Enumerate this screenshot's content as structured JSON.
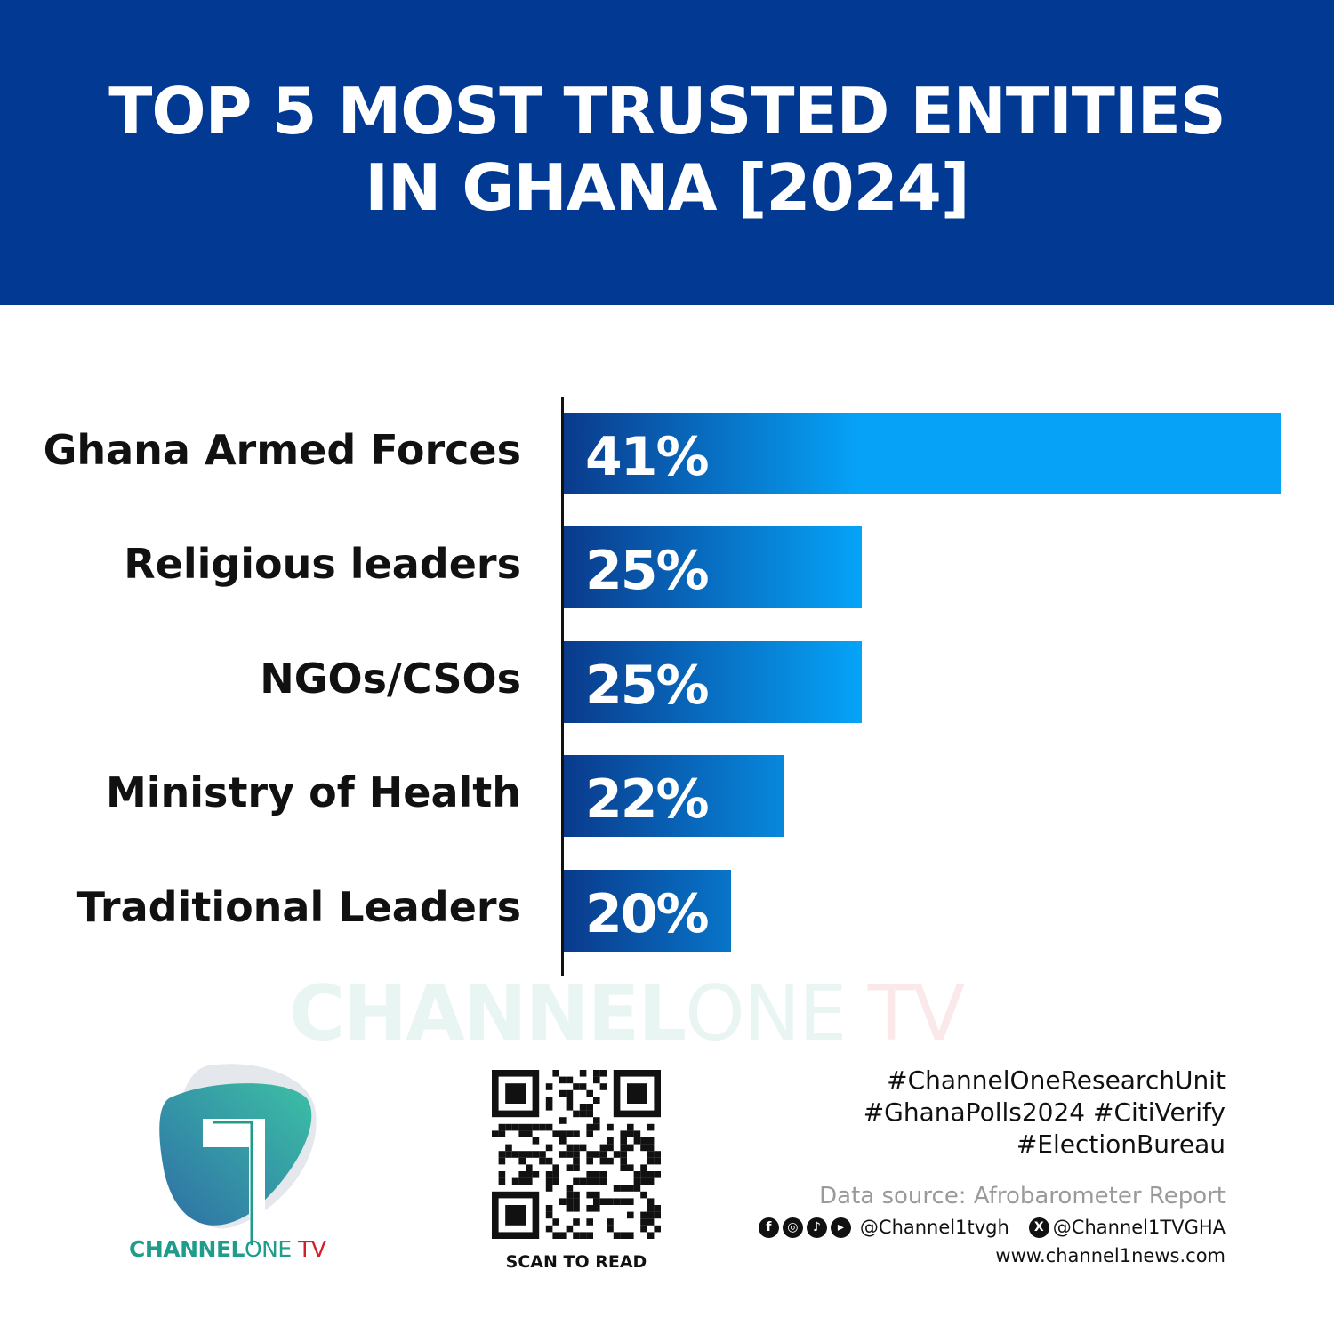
{
  "header": {
    "title_line1": "TOP 5 MOST TRUSTED ENTITIES",
    "title_line2": "IN GHANA [2024]"
  },
  "chart_data": {
    "type": "bar",
    "orientation": "horizontal",
    "title": "TOP 5 MOST TRUSTED ENTITIES IN GHANA [2024]",
    "categories": [
      "Ghana Armed Forces",
      "Religious leaders",
      "NGOs/CSOs",
      "Ministry of Health",
      "Traditional Leaders"
    ],
    "values": [
      41,
      25,
      25,
      22,
      20
    ],
    "value_labels": [
      "41%",
      "25%",
      "25%",
      "22%",
      "20%"
    ],
    "unit": "%",
    "grid": false,
    "bar_color_start": "#0a3a8c",
    "bar_color_end": "#06a2f7"
  },
  "watermark": {
    "part1": "CHANNEL",
    "part2": "ONE",
    "part3": " TV"
  },
  "logo": {
    "part1": "CHANNEL",
    "part2": "ONE",
    "part3": " TV"
  },
  "qr": {
    "caption": "SCAN TO READ"
  },
  "footer": {
    "hashtags": [
      "#ChannelOneResearchUnit",
      "#GhanaPolls2024 #CitiVerify",
      "#ElectionBureau"
    ],
    "source": "Data source: Afrobarometer Report",
    "social_handle": "@Channel1tvgh",
    "x_handle": "@Channel1TVGHA",
    "website": "www.channel1news.com",
    "social_icons": [
      "facebook-icon",
      "instagram-icon",
      "tiktok-icon",
      "youtube-icon",
      "x-icon"
    ]
  },
  "colors": {
    "header_bg": "#023a93",
    "brand_teal": "#1e9c8c",
    "brand_red": "#d0202a"
  }
}
